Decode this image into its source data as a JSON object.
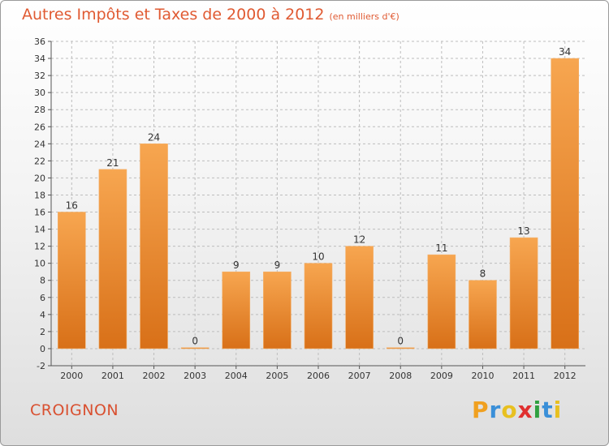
{
  "header": {
    "title": "Autres Impôts et Taxes de 2000 à 2012",
    "subtitle": "(en milliers d'€)"
  },
  "footer": {
    "commune": "CROIGNON",
    "logo_letters": [
      "P",
      "r",
      "o",
      "x",
      "i",
      "t",
      "i"
    ],
    "logo_colors": [
      "#f0a020",
      "#3a8fd8",
      "#e8c020",
      "#e03030",
      "#30a040",
      "#3a8fd8",
      "#e8c020"
    ]
  },
  "colors": {
    "bar_light": "#f7a650",
    "bar_dark": "#d87018",
    "grid": "#bdbdbd",
    "title": "#e05a32"
  },
  "chart_data": {
    "type": "bar",
    "title": "Autres Impôts et Taxes de 2000 à 2012",
    "subtitle": "(en milliers d'€)",
    "categories": [
      "2000",
      "2001",
      "2002",
      "2003",
      "2004",
      "2005",
      "2006",
      "2007",
      "2008",
      "2009",
      "2010",
      "2011",
      "2012"
    ],
    "values": [
      16,
      21,
      24,
      0,
      9,
      9,
      10,
      12,
      0,
      11,
      8,
      13,
      34
    ],
    "ylim": [
      -2,
      36
    ],
    "yticks": [
      -2,
      0,
      2,
      4,
      6,
      8,
      10,
      12,
      14,
      16,
      18,
      20,
      22,
      24,
      26,
      28,
      30,
      32,
      34,
      36
    ],
    "grid": true,
    "data_labels": true
  }
}
